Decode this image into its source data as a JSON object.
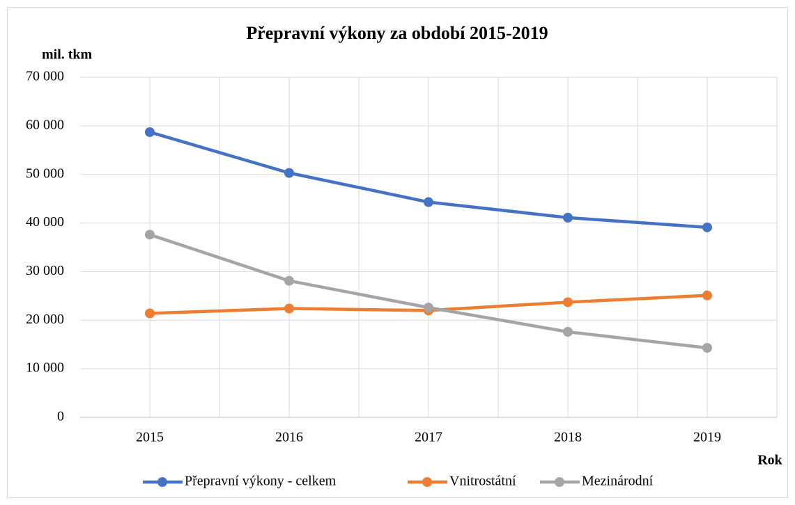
{
  "chart_data": {
    "type": "line",
    "title": "Přepravní výkony za období 2015-2019",
    "y_label": "mil. tkm",
    "x_label": "Rok",
    "categories": [
      "2015",
      "2016",
      "2017",
      "2018",
      "2019"
    ],
    "series": [
      {
        "name": "Přepravní výkony - celkem",
        "color": "#4472c4",
        "values": [
          58700,
          50300,
          44300,
          41100,
          39100
        ]
      },
      {
        "name": "Vnitrostátní",
        "color": "#ed7d31",
        "values": [
          21400,
          22400,
          22000,
          23700,
          25100
        ]
      },
      {
        "name": "Mezinárodní",
        "color": "#a5a5a5",
        "values": [
          37600,
          28100,
          22600,
          17600,
          14300
        ]
      }
    ],
    "ylim": [
      0,
      70000
    ],
    "yticks": [
      0,
      {
        "value": 10000,
        "label": "10 000"
      },
      {
        "value": 20000,
        "label": "20 000"
      },
      {
        "value": 30000,
        "label": "30 000"
      },
      {
        "value": 40000,
        "label": "40 000"
      },
      {
        "value": 50000,
        "label": "50 000"
      },
      {
        "value": 60000,
        "label": "60 000"
      },
      {
        "value": 70000,
        "label": "70 000"
      }
    ],
    "grid": true,
    "legend": "bottom"
  }
}
